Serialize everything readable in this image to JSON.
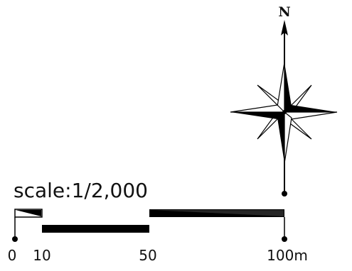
{
  "north_arrow": {
    "label": "N",
    "icon": "compass-rose-icon"
  },
  "scale_bar": {
    "text": "scale:1/2,000",
    "unit_suffix": "m",
    "ticks": [
      0,
      10,
      50,
      100
    ],
    "tick_labels": [
      "0",
      "10",
      "50",
      "100m"
    ],
    "colors": {
      "fill": "#000000",
      "background": "#ffffff"
    }
  }
}
